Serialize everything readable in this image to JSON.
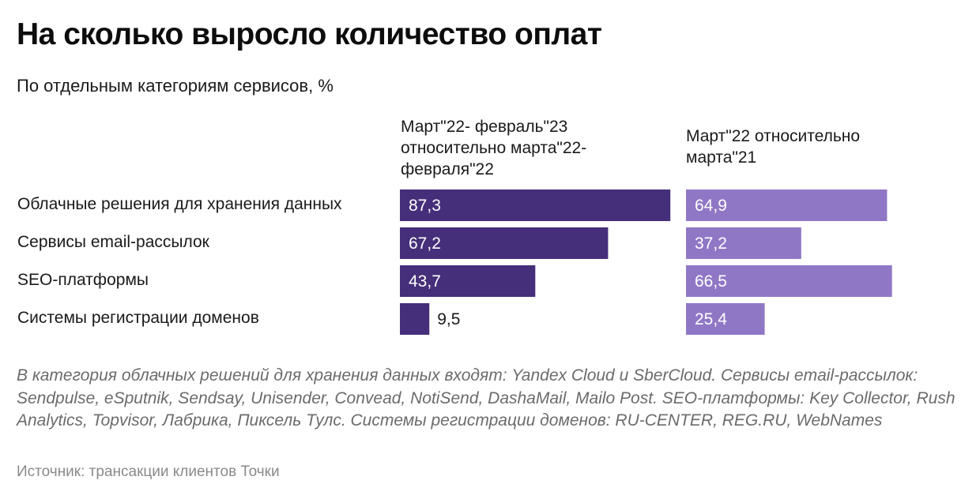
{
  "header": {
    "title": "На сколько выросло количество оплат",
    "subtitle": "По отдельным категориям сервисов, %"
  },
  "colors": {
    "series_0": "#452f7a",
    "series_1": "#9077c6",
    "label_inside": "#ffffff",
    "label_outside": "#1a1a1a"
  },
  "chart_data": {
    "type": "bar",
    "orientation": "horizontal",
    "title": "На сколько выросло количество оплат",
    "subtitle": "По отдельным категориям сервисов, %",
    "xlabel": "",
    "ylabel": "",
    "grid": false,
    "legend": "none",
    "categories": [
      "Облачные решения для хранения данных",
      "Сервисы email-рассылок",
      "SEO-платформы",
      "Системы регистрации доменов"
    ],
    "series": [
      {
        "name": "Март\"22- февраль\"23 относительно марта\"22- февраля\"22",
        "values": [
          87.3,
          67.2,
          43.7,
          9.5
        ],
        "labels": [
          "87,3",
          "67,2",
          "43,7",
          "9,5"
        ]
      },
      {
        "name": "Март\"22 относительно марта\"21",
        "values": [
          64.9,
          37.2,
          66.5,
          25.4
        ],
        "labels": [
          "64,9",
          "37,2",
          "66,5",
          "25,4"
        ]
      }
    ],
    "xlim": [
      0,
      90
    ]
  },
  "footnote": "В категория облачных решений для хранения данных входят: Yandex Cloud и SberCloud. Сервисы email-рассылок: Sendpulse, eSputnik, Sendsay, Unisender, Convead, NotiSend, DashaMail, Mailo Post. SEO-платформы: Key Collector, Rush Analytics, Topvisor, Лабрика, Пиксель Тулс. Системы регистрации доменов: RU-CENTER, REG.RU, WebNames",
  "source": "Источник: трансакции клиентов Точки"
}
